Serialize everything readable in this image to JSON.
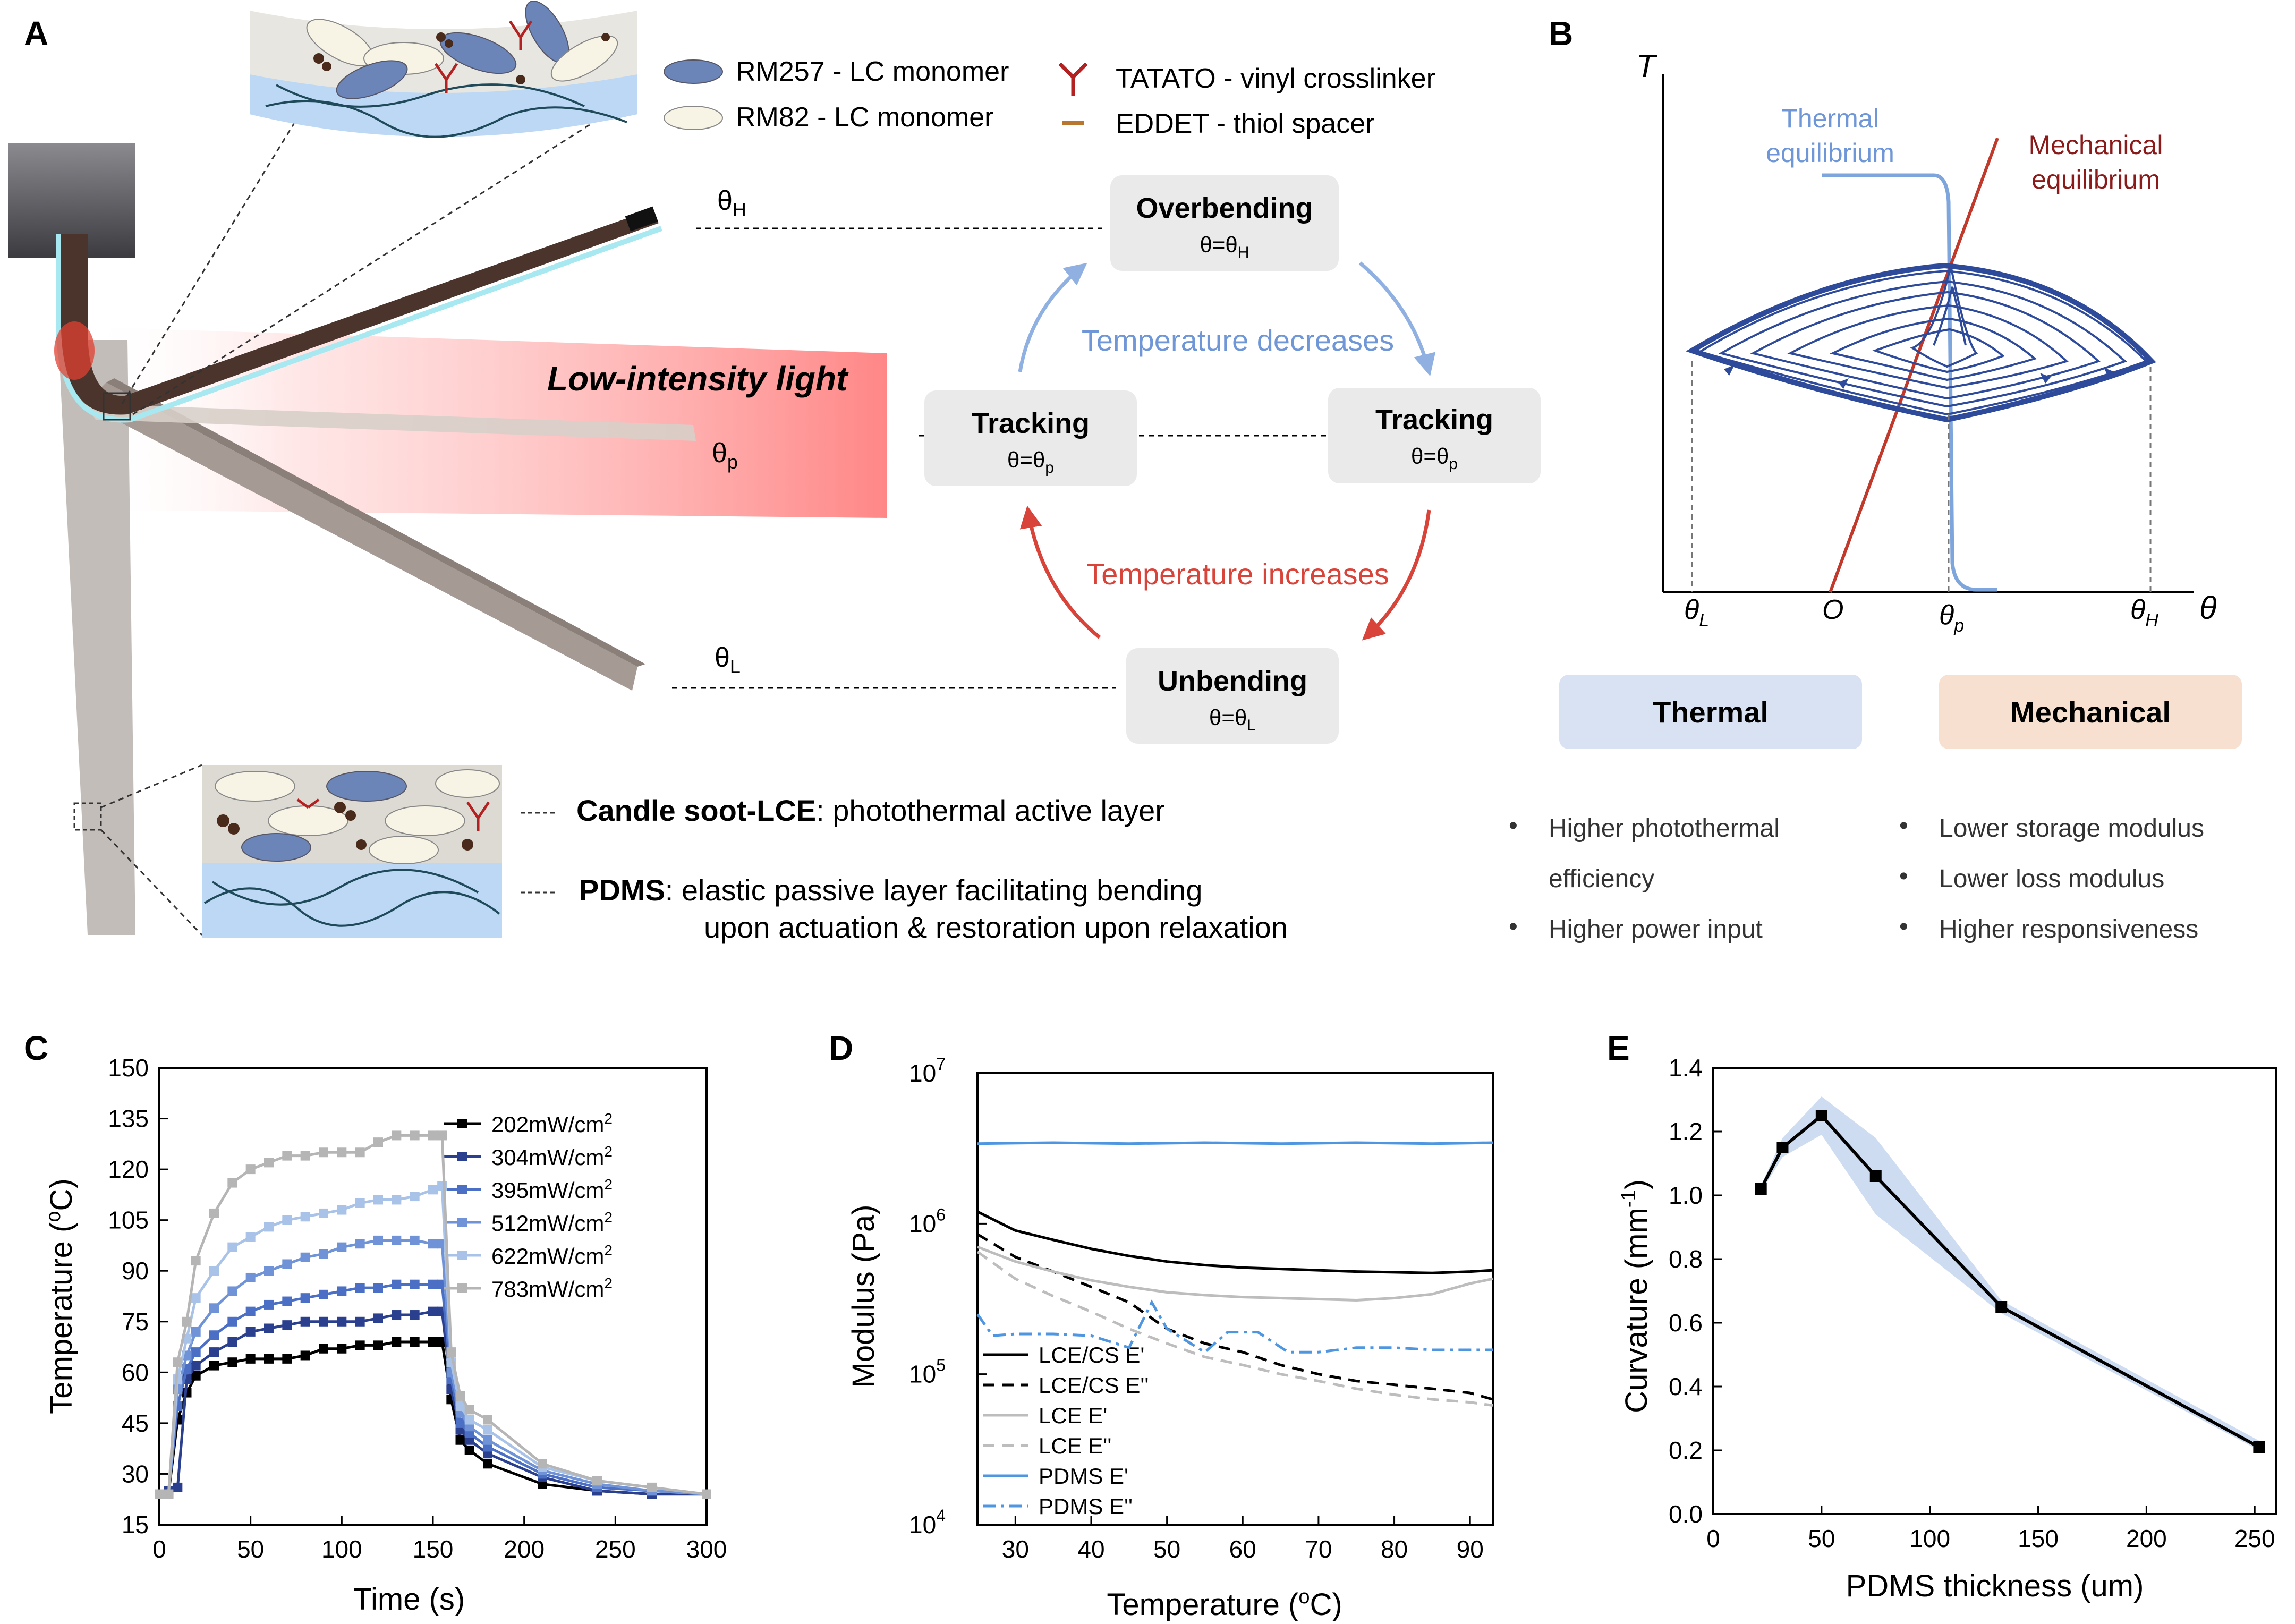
{
  "panels": {
    "A": "A",
    "B": "B",
    "C": "C",
    "D": "D",
    "E": "E"
  },
  "panelA": {
    "legend": {
      "rm257": "RM257 - LC monomer",
      "rm82": "RM82 -   LC monomer",
      "tatato": "TATATO - vinyl crosslinker",
      "eddet": "EDDET -  thiol spacer"
    },
    "light_label": "Low-intensity light",
    "theta_h": "θ",
    "theta_h_sub": "H",
    "theta_p": "θ",
    "theta_p_sub": "p",
    "theta_l": "θ",
    "theta_l_sub": "L",
    "cycle": {
      "overbending": {
        "title": "Overbending",
        "eq": "θ=θ",
        "sub": "H"
      },
      "tracking_left": {
        "title": "Tracking",
        "eq": "θ=θ",
        "sub": "p"
      },
      "tracking_right": {
        "title": "Tracking",
        "eq": "θ=θ",
        "sub": "p"
      },
      "unbending": {
        "title": "Unbending",
        "eq": "θ=θ",
        "sub": "L"
      },
      "temp_decreases": "Temperature decreases",
      "temp_increases": "Temperature increases"
    },
    "layers": {
      "cs_lce_bold": "Candle soot-LCE",
      "cs_lce_rest": ": photothermal active layer",
      "pdms_bold": "PDMS",
      "pdms_rest_1": ": elastic passive layer facilitating bending",
      "pdms_rest_2": "upon actuation & restoration upon relaxation"
    },
    "colors": {
      "blue_arrow": "#8fb0e0",
      "red_arrow": "#d9443a",
      "box_fill": "#eaeaea"
    }
  },
  "panelB": {
    "axis_y": "T",
    "axis_x": "θ",
    "ticks": [
      {
        "main": "θ",
        "sub": "L"
      },
      {
        "main": "O",
        "sub": ""
      },
      {
        "main": "θ",
        "sub": "p"
      },
      {
        "main": "θ",
        "sub": "H"
      }
    ],
    "thermal_eq": [
      "Thermal",
      "equilibrium"
    ],
    "mechanical_eq": [
      "Mechanical",
      "equilibrium"
    ],
    "thermal_box": "Thermal",
    "mechanical_box": "Mechanical",
    "thermal_bullets": [
      "Higher photothermal",
      "efficiency",
      "Higher power input"
    ],
    "mechanical_bullets": [
      "Lower storage modulus",
      "Lower loss modulus",
      "Higher responsiveness"
    ],
    "colors": {
      "thermal": "#7fa6dc",
      "mechanical": "#b03a2e",
      "spiral": "#2d4a9b",
      "thermal_box": "#d8e2f3",
      "mechanical_box": "#f7e0d0"
    }
  },
  "panelC": {
    "chart_data": {
      "type": "line",
      "xlabel": "Time (s)",
      "ylabel": "Temperature (",
      "ylabel_sup": "o",
      "ylabel_end": "C)",
      "xlim": [
        0,
        300
      ],
      "ylim": [
        15,
        150
      ],
      "xticks": [
        0,
        50,
        100,
        150,
        200,
        250,
        300
      ],
      "yticks": [
        15,
        30,
        45,
        60,
        75,
        90,
        105,
        120,
        135,
        150
      ],
      "x": [
        0,
        5,
        10,
        15,
        20,
        30,
        40,
        50,
        60,
        70,
        80,
        90,
        100,
        110,
        120,
        130,
        140,
        150,
        155,
        160,
        165,
        170,
        180,
        210,
        240,
        270,
        300
      ],
      "series": [
        {
          "name": "202mW/cm",
          "sup": "2",
          "color": "#000000",
          "values": [
            24,
            24,
            46,
            54,
            59,
            62,
            63,
            64,
            64,
            64,
            65,
            67,
            67,
            68,
            68,
            69,
            69,
            69,
            69,
            52,
            40,
            37,
            33,
            27,
            25,
            24,
            24
          ]
        },
        {
          "name": "304mW/cm",
          "sup": "2",
          "color": "#2b3f8f",
          "values": [
            24,
            25,
            26,
            58,
            62,
            66,
            69,
            72,
            73,
            74,
            75,
            75,
            75,
            75,
            76,
            77,
            77,
            78,
            78,
            55,
            43,
            40,
            36,
            29,
            25,
            24,
            24
          ]
        },
        {
          "name": "395mW/cm",
          "sup": "2",
          "color": "#4a6fc4",
          "values": [
            24,
            24,
            50,
            61,
            66,
            71,
            75,
            78,
            80,
            81,
            82,
            83,
            84,
            85,
            85,
            86,
            86,
            86,
            86,
            58,
            45,
            42,
            38,
            30,
            26,
            25,
            24
          ]
        },
        {
          "name": "512mW/cm",
          "sup": "2",
          "color": "#6f93d6",
          "values": [
            24,
            24,
            55,
            65,
            72,
            79,
            84,
            88,
            90,
            92,
            94,
            95,
            97,
            98,
            99,
            99,
            99,
            98,
            98,
            60,
            48,
            44,
            40,
            31,
            27,
            25,
            24
          ]
        },
        {
          "name": "622mW/cm",
          "sup": "2",
          "color": "#a9c2e8",
          "values": [
            24,
            24,
            58,
            70,
            82,
            90,
            97,
            100,
            103,
            105,
            106,
            107,
            108,
            110,
            111,
            111,
            112,
            114,
            115,
            63,
            50,
            46,
            43,
            32,
            28,
            26,
            24
          ]
        },
        {
          "name": "783mW/cm",
          "sup": "2",
          "color": "#b5b5b5",
          "values": [
            24,
            24,
            63,
            75,
            93,
            107,
            116,
            120,
            122,
            124,
            124,
            125,
            125,
            125,
            128,
            130,
            130,
            130,
            130,
            66,
            53,
            49,
            46,
            33,
            28,
            26,
            24
          ]
        }
      ]
    }
  },
  "panelD": {
    "chart_data": {
      "type": "line",
      "xlabel": "Temperature (",
      "xlabel_sup": "o",
      "xlabel_end": "C)",
      "ylabel": "Modulus (Pa)",
      "scale_y": "log",
      "xlim": [
        25,
        93
      ],
      "ylim": [
        10000,
        10000000
      ],
      "xticks": [
        30,
        40,
        50,
        60,
        70,
        80,
        90
      ],
      "yticks": [
        {
          "base": "10",
          "exp": "4"
        },
        {
          "base": "10",
          "exp": "5"
        },
        {
          "base": "10",
          "exp": "6"
        },
        {
          "base": "10",
          "exp": "7"
        }
      ],
      "series": [
        {
          "name": "LCE/CS E'",
          "color": "#000000",
          "dash": "solid",
          "x": [
            25,
            30,
            35,
            40,
            45,
            50,
            55,
            60,
            65,
            70,
            75,
            80,
            85,
            90,
            93
          ],
          "values": [
            1200000,
            900000,
            780000,
            680000,
            610000,
            560000,
            530000,
            510000,
            500000,
            490000,
            480000,
            475000,
            470000,
            480000,
            490000
          ]
        },
        {
          "name": "LCE/CS E''",
          "color": "#000000",
          "dash": "dash",
          "x": [
            25,
            30,
            35,
            40,
            45,
            50,
            55,
            60,
            65,
            70,
            75,
            80,
            85,
            90,
            93
          ],
          "values": [
            850000,
            600000,
            480000,
            380000,
            300000,
            200000,
            160000,
            140000,
            115000,
            100000,
            90000,
            85000,
            80000,
            75000,
            68000
          ]
        },
        {
          "name": "LCE E'",
          "color": "#bdbdbd",
          "dash": "solid",
          "x": [
            25,
            30,
            35,
            40,
            45,
            50,
            55,
            60,
            65,
            70,
            75,
            80,
            85,
            90,
            93
          ],
          "values": [
            700000,
            560000,
            480000,
            420000,
            380000,
            350000,
            335000,
            325000,
            320000,
            315000,
            310000,
            320000,
            340000,
            400000,
            430000
          ]
        },
        {
          "name": "LCE E''",
          "color": "#bdbdbd",
          "dash": "dash",
          "x": [
            25,
            30,
            35,
            40,
            45,
            50,
            55,
            60,
            65,
            70,
            75,
            80,
            85,
            90,
            93
          ],
          "values": [
            650000,
            430000,
            330000,
            260000,
            200000,
            160000,
            130000,
            115000,
            100000,
            90000,
            80000,
            73000,
            68000,
            65000,
            62000
          ]
        },
        {
          "name": "PDMS E'",
          "color": "#4f96e0",
          "dash": "solid",
          "x": [
            25,
            35,
            45,
            55,
            65,
            75,
            85,
            93
          ],
          "values": [
            3400000,
            3450000,
            3400000,
            3450000,
            3400000,
            3450000,
            3400000,
            3450000
          ]
        },
        {
          "name": "PDMS E''",
          "color": "#4f96e0",
          "dash": "dashdot",
          "x": [
            25,
            27,
            30,
            35,
            40,
            45,
            48,
            50,
            55,
            58,
            62,
            66,
            70,
            75,
            80,
            85,
            90,
            93
          ],
          "values": [
            250000,
            180000,
            185000,
            185000,
            180000,
            150000,
            300000,
            200000,
            140000,
            190000,
            190000,
            140000,
            140000,
            150000,
            150000,
            145000,
            145000,
            145000
          ]
        }
      ]
    }
  },
  "panelE": {
    "chart_data": {
      "type": "line",
      "xlabel": "PDMS thickness (um)",
      "ylabel": "Curvature (mm",
      "ylabel_sup": "-1",
      "ylabel_end": ")",
      "xlim": [
        0,
        260
      ],
      "ylim": [
        0,
        1.4
      ],
      "xticks": [
        0,
        50,
        100,
        150,
        200,
        250
      ],
      "yticks": [
        "0.0",
        "0.2",
        "0.4",
        "0.6",
        "0.8",
        "1.0",
        "1.2",
        "1.4"
      ],
      "x": [
        22,
        32,
        50,
        75,
        133,
        252
      ],
      "values": [
        1.02,
        1.15,
        1.25,
        1.06,
        0.65,
        0.21
      ],
      "band_upper": [
        1.03,
        1.18,
        1.31,
        1.18,
        0.67,
        0.23
      ],
      "band_lower": [
        1.01,
        1.12,
        1.19,
        0.94,
        0.63,
        0.2
      ]
    }
  }
}
